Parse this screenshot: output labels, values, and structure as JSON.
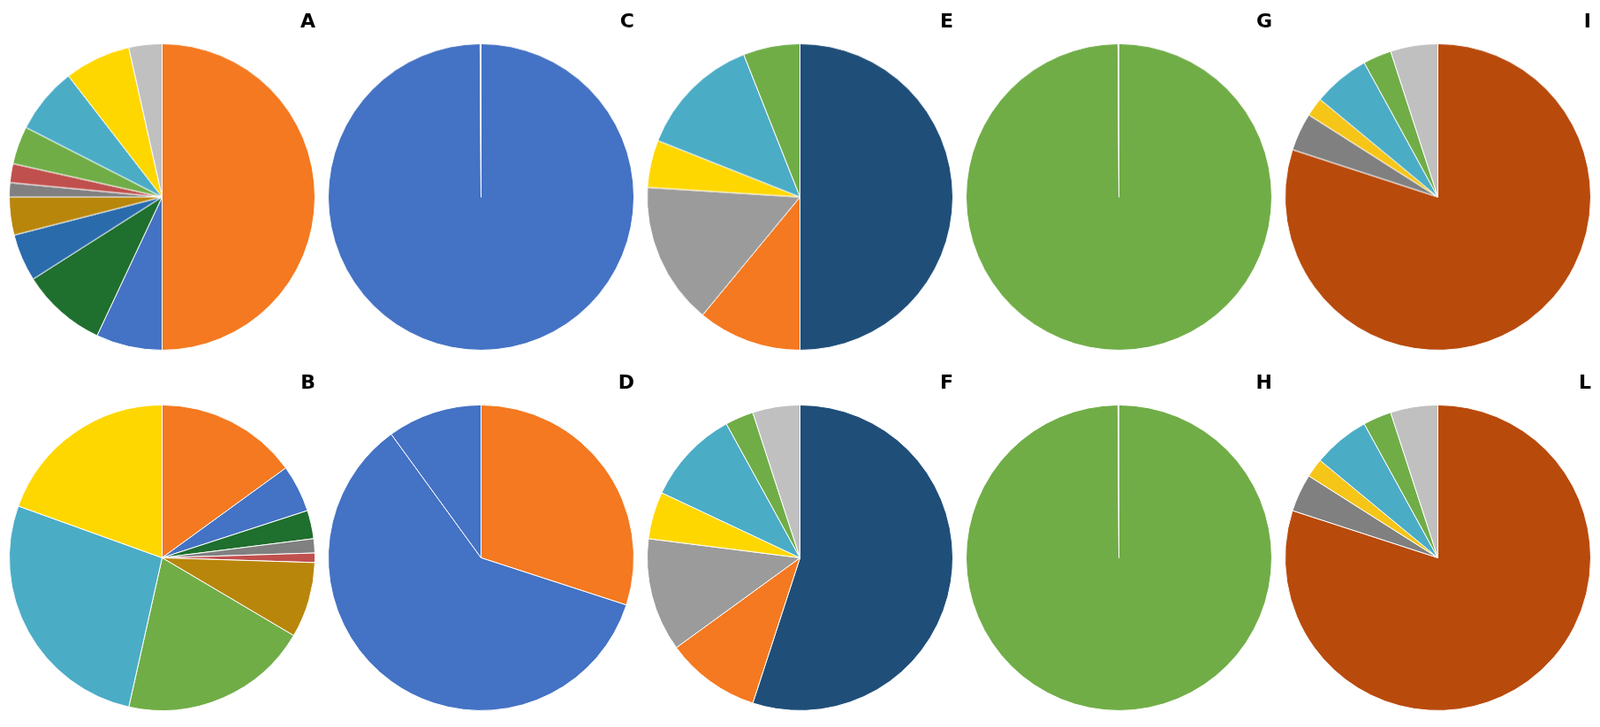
{
  "chart_data": [
    {
      "type": "pie",
      "title": "A",
      "values": [
        50,
        7,
        9,
        5,
        4,
        1.5,
        2,
        4,
        7,
        7,
        3.5
      ],
      "colors": [
        "#F47920",
        "#4472C4",
        "#1F6F2E",
        "#2A6BAC",
        "#B8860B",
        "#808080",
        "#C0504D",
        "#70AD47",
        "#4BACC6",
        "#FFD700",
        "#C0C0C0"
      ],
      "legend": false
    },
    {
      "type": "pie",
      "title": "C",
      "values": [
        99.9,
        0.1
      ],
      "colors": [
        "#4472C4",
        "#4472C4"
      ],
      "legend": false
    },
    {
      "type": "pie",
      "title": "E",
      "values": [
        50,
        11,
        15,
        5,
        13,
        6
      ],
      "colors": [
        "#1F4E79",
        "#F47920",
        "#9B9B9B",
        "#FFD700",
        "#4BACC6",
        "#70AD47"
      ],
      "legend": false
    },
    {
      "type": "pie",
      "title": "G",
      "values": [
        99.9,
        0.1
      ],
      "colors": [
        "#70AD47",
        "#70AD47"
      ],
      "legend": false
    },
    {
      "type": "pie",
      "title": "I",
      "values": [
        80,
        4,
        2,
        6,
        3,
        5
      ],
      "colors": [
        "#B84A0C",
        "#808080",
        "#F5C518",
        "#4BACC6",
        "#70AD47",
        "#C0C0C0"
      ],
      "legend": false
    },
    {
      "type": "pie",
      "title": "B",
      "values": [
        15,
        5,
        3,
        1.5,
        1,
        8,
        20,
        27,
        19.5
      ],
      "colors": [
        "#F47920",
        "#4472C4",
        "#1F6F2E",
        "#808080",
        "#C0504D",
        "#B8860B",
        "#70AD47",
        "#4BACC6",
        "#FFD700"
      ],
      "legend": false
    },
    {
      "type": "pie",
      "title": "D",
      "values": [
        30,
        60,
        10
      ],
      "colors": [
        "#F47920",
        "#4472C4",
        "#4472C4"
      ],
      "legend": false
    },
    {
      "type": "pie",
      "title": "F",
      "values": [
        55,
        10,
        12,
        5,
        10,
        3,
        5
      ],
      "colors": [
        "#1F4E79",
        "#F47920",
        "#9B9B9B",
        "#FFD700",
        "#4BACC6",
        "#70AD47",
        "#C0C0C0"
      ],
      "legend": false
    },
    {
      "type": "pie",
      "title": "H",
      "values": [
        99.9,
        0.1
      ],
      "colors": [
        "#70AD47",
        "#70AD47"
      ],
      "legend": false
    },
    {
      "type": "pie",
      "title": "L",
      "values": [
        80,
        4,
        2,
        6,
        3,
        5
      ],
      "colors": [
        "#B84A0C",
        "#808080",
        "#F5C518",
        "#4BACC6",
        "#70AD47",
        "#C0C0C0"
      ],
      "legend": false
    }
  ]
}
